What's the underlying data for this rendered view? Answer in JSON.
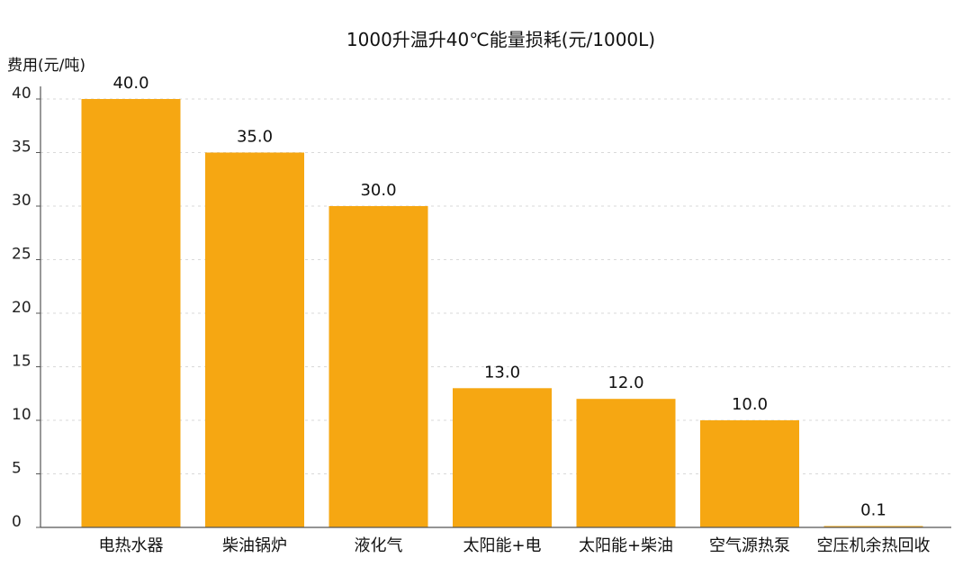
{
  "chart_data": {
    "type": "bar",
    "title": "1000升温升40℃能量损耗(元/1000L)",
    "ylabel": "费用(元/吨)",
    "xlabel": "",
    "categories": [
      "电热水器",
      "柴油锅炉",
      "液化气",
      "太阳能+电",
      "太阳能+柴油",
      "空气源热泵",
      "空压机余热回收"
    ],
    "values": [
      40.0,
      35.0,
      30.0,
      13.0,
      12.0,
      10.0,
      0.1
    ],
    "data_labels": [
      "40.0",
      "35.0",
      "30.0",
      "13.0",
      "12.0",
      "10.0",
      "0.1"
    ],
    "ylim": [
      0,
      42
    ],
    "yticks": [
      0,
      5,
      10,
      15,
      20,
      25,
      30,
      35,
      40
    ],
    "ytick_labels": [
      "0",
      "5",
      "10",
      "15",
      "20",
      "25",
      "30",
      "35",
      "40"
    ],
    "grid": true,
    "bar_color": "#F6A712",
    "grid_color": "#d9d9d9",
    "axis_color": "#555555"
  }
}
